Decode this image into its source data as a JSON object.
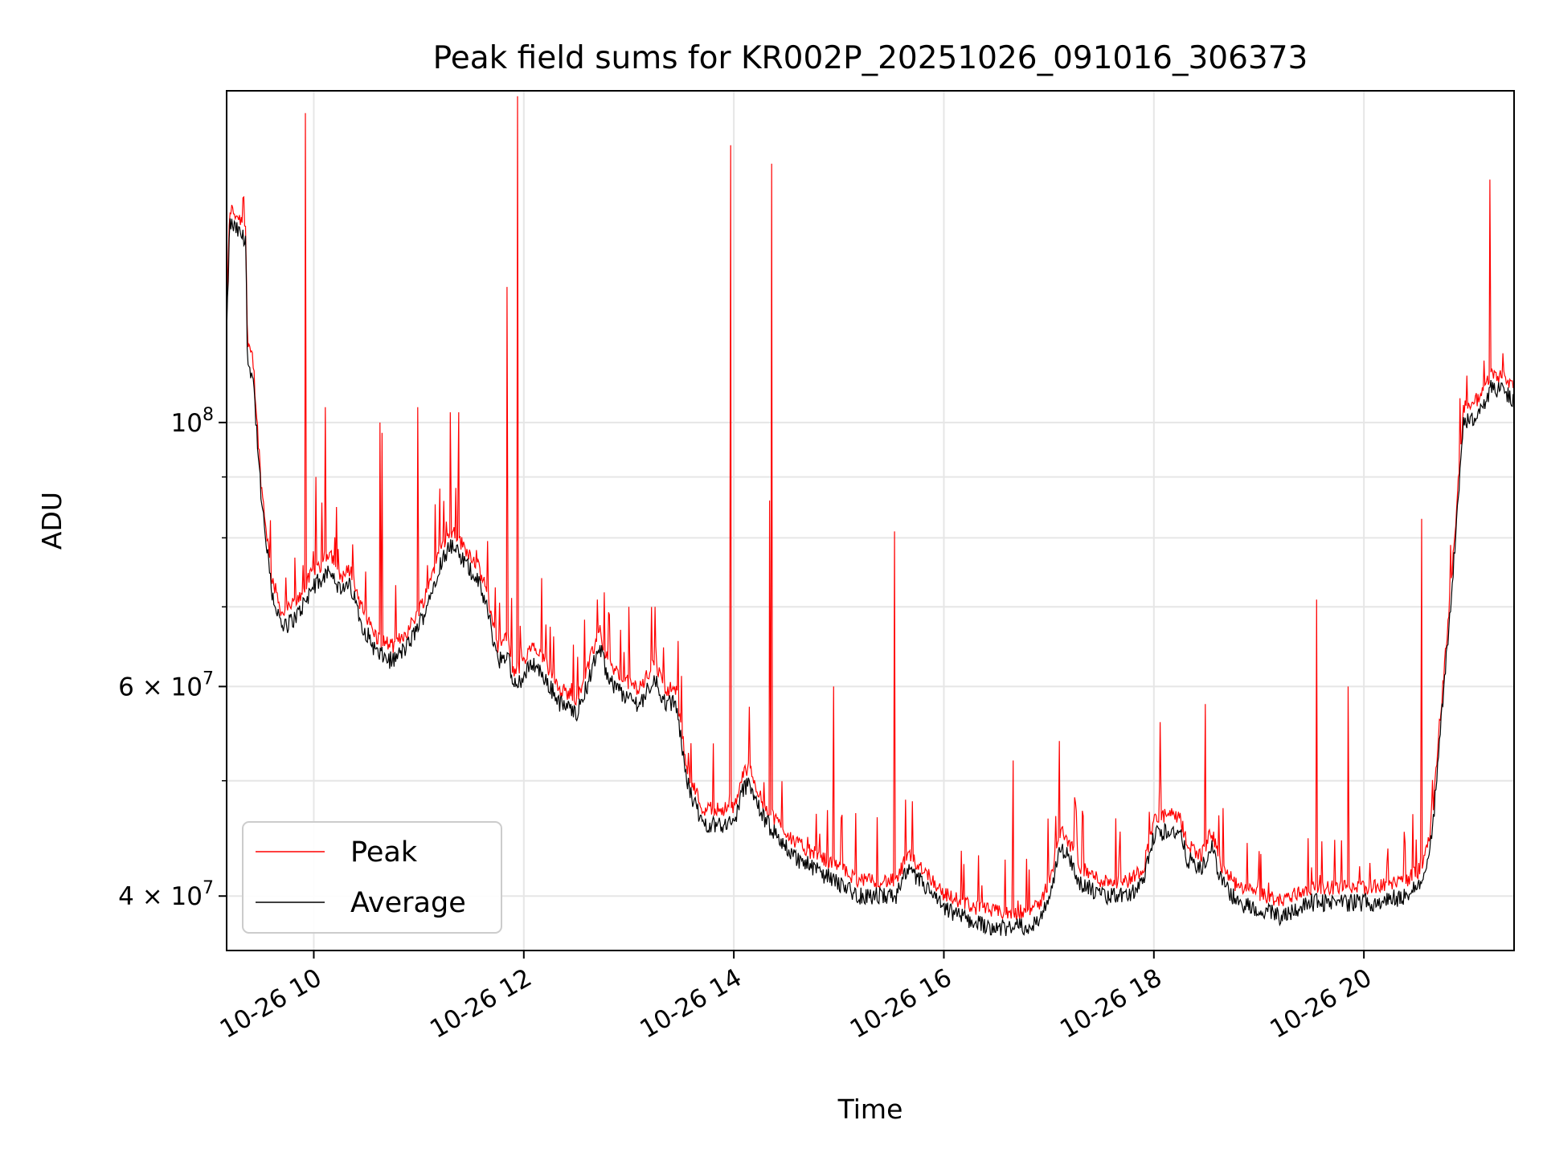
{
  "chart_data": {
    "type": "line",
    "title": "Peak field sums for KR002P_20251026_091016_306373",
    "xlabel": "Time",
    "ylabel": "ADU",
    "yscale": "log",
    "xlim": [
      9.17,
      21.43
    ],
    "ylim": [
      36000000,
      190000000
    ],
    "grid": true,
    "legend_position": "lower-left",
    "x_ticks": [
      {
        "value": 10,
        "label": "10-26 10"
      },
      {
        "value": 12,
        "label": "10-26 12"
      },
      {
        "value": 14,
        "label": "10-26 14"
      },
      {
        "value": 16,
        "label": "10-26 16"
      },
      {
        "value": 18,
        "label": "10-26 18"
      },
      {
        "value": 20,
        "label": "10-26 20"
      }
    ],
    "y_ticks": [
      {
        "value": 40000000,
        "label": "4 × 10⁷",
        "base": "4 × 10",
        "exp": "7"
      },
      {
        "value": 60000000,
        "label": "6 × 10⁷",
        "base": "6 × 10",
        "exp": "7"
      },
      {
        "value": 100000000,
        "label": "10⁸",
        "base": "10",
        "exp": "8"
      }
    ],
    "y_minor_ticks": [
      50000000,
      70000000,
      80000000,
      90000000
    ],
    "series": [
      {
        "name": "Peak",
        "color": "#ff0000",
        "spikes": [
          [
            9.92,
            182000000
          ],
          [
            9.82,
            77000000
          ],
          [
            10.02,
            90000000
          ],
          [
            10.11,
            103000000
          ],
          [
            10.37,
            79000000
          ],
          [
            10.63,
            100000000
          ],
          [
            10.65,
            98000000
          ],
          [
            10.78,
            73000000
          ],
          [
            10.99,
            103000000
          ],
          [
            11.2,
            88000000
          ],
          [
            11.3,
            102000000
          ],
          [
            11.38,
            102000000
          ],
          [
            11.84,
            130000000
          ],
          [
            11.94,
            188000000
          ],
          [
            12.17,
            74000000
          ],
          [
            12.7,
            71000000
          ],
          [
            13.0,
            70000000
          ],
          [
            13.25,
            70000000
          ],
          [
            13.97,
            171000000
          ],
          [
            14.36,
            165000000
          ],
          [
            14.34,
            86000000
          ],
          [
            14.95,
            60000000
          ],
          [
            15.53,
            81000000
          ],
          [
            16.66,
            52000000
          ],
          [
            17.1,
            54000000
          ],
          [
            18.06,
            56000000
          ],
          [
            18.49,
            58000000
          ],
          [
            19.55,
            71000000
          ],
          [
            19.85,
            60000000
          ],
          [
            20.55,
            83000000
          ],
          [
            21.2,
            160000000
          ]
        ]
      },
      {
        "name": "Average",
        "color": "#000000"
      }
    ],
    "average_profile": [
      [
        9.17,
        118000000
      ],
      [
        9.2,
        147000000
      ],
      [
        9.3,
        144000000
      ],
      [
        9.35,
        142000000
      ],
      [
        9.37,
        112000000
      ],
      [
        9.42,
        110000000
      ],
      [
        9.5,
        86000000
      ],
      [
        9.6,
        72000000
      ],
      [
        9.7,
        67000000
      ],
      [
        9.85,
        69000000
      ],
      [
        10.0,
        73000000
      ],
      [
        10.1,
        74000000
      ],
      [
        10.15,
        76000000
      ],
      [
        10.25,
        72000000
      ],
      [
        10.35,
        73000000
      ],
      [
        10.45,
        68000000
      ],
      [
        10.6,
        64000000
      ],
      [
        10.75,
        63000000
      ],
      [
        10.9,
        65000000
      ],
      [
        11.05,
        69000000
      ],
      [
        11.2,
        76000000
      ],
      [
        11.3,
        79000000
      ],
      [
        11.45,
        76000000
      ],
      [
        11.55,
        74000000
      ],
      [
        11.65,
        70000000
      ],
      [
        11.75,
        63000000
      ],
      [
        11.85,
        64000000
      ],
      [
        11.9,
        60000000
      ],
      [
        12.0,
        61000000
      ],
      [
        12.08,
        63000000
      ],
      [
        12.2,
        61000000
      ],
      [
        12.35,
        58000000
      ],
      [
        12.5,
        57000000
      ],
      [
        12.6,
        60000000
      ],
      [
        12.72,
        65000000
      ],
      [
        12.8,
        61000000
      ],
      [
        12.95,
        59000000
      ],
      [
        13.1,
        58000000
      ],
      [
        13.25,
        61000000
      ],
      [
        13.35,
        58000000
      ],
      [
        13.45,
        58000000
      ],
      [
        13.55,
        50000000
      ],
      [
        13.62,
        48000000
      ],
      [
        13.7,
        46000000
      ],
      [
        13.85,
        46000000
      ],
      [
        14.0,
        46000000
      ],
      [
        14.08,
        49000000
      ],
      [
        14.15,
        50000000
      ],
      [
        14.25,
        47000000
      ],
      [
        14.4,
        45000000
      ],
      [
        14.6,
        43000000
      ],
      [
        14.8,
        42000000
      ],
      [
        15.0,
        41000000
      ],
      [
        15.2,
        40000000
      ],
      [
        15.4,
        40000000
      ],
      [
        15.55,
        40000000
      ],
      [
        15.65,
        42000000
      ],
      [
        15.8,
        41000000
      ],
      [
        16.0,
        39000000
      ],
      [
        16.3,
        38000000
      ],
      [
        16.6,
        37500000
      ],
      [
        16.9,
        38000000
      ],
      [
        17.0,
        40000000
      ],
      [
        17.12,
        44000000
      ],
      [
        17.2,
        43000000
      ],
      [
        17.3,
        41000000
      ],
      [
        17.5,
        40000000
      ],
      [
        17.75,
        40000000
      ],
      [
        17.9,
        41000000
      ],
      [
        18.0,
        45000000
      ],
      [
        18.15,
        45500000
      ],
      [
        18.25,
        45000000
      ],
      [
        18.32,
        43000000
      ],
      [
        18.45,
        42000000
      ],
      [
        18.55,
        44000000
      ],
      [
        18.65,
        41000000
      ],
      [
        18.8,
        39500000
      ],
      [
        19.0,
        39000000
      ],
      [
        19.2,
        38500000
      ],
      [
        19.5,
        39500000
      ],
      [
        19.8,
        39500000
      ],
      [
        20.1,
        39500000
      ],
      [
        20.4,
        40000000
      ],
      [
        20.55,
        41000000
      ],
      [
        20.65,
        45000000
      ],
      [
        20.75,
        58000000
      ],
      [
        20.85,
        75000000
      ],
      [
        20.95,
        100000000
      ],
      [
        21.05,
        101000000
      ],
      [
        21.15,
        103000000
      ],
      [
        21.2,
        107000000
      ],
      [
        21.35,
        106000000
      ],
      [
        21.43,
        104000000
      ]
    ]
  }
}
